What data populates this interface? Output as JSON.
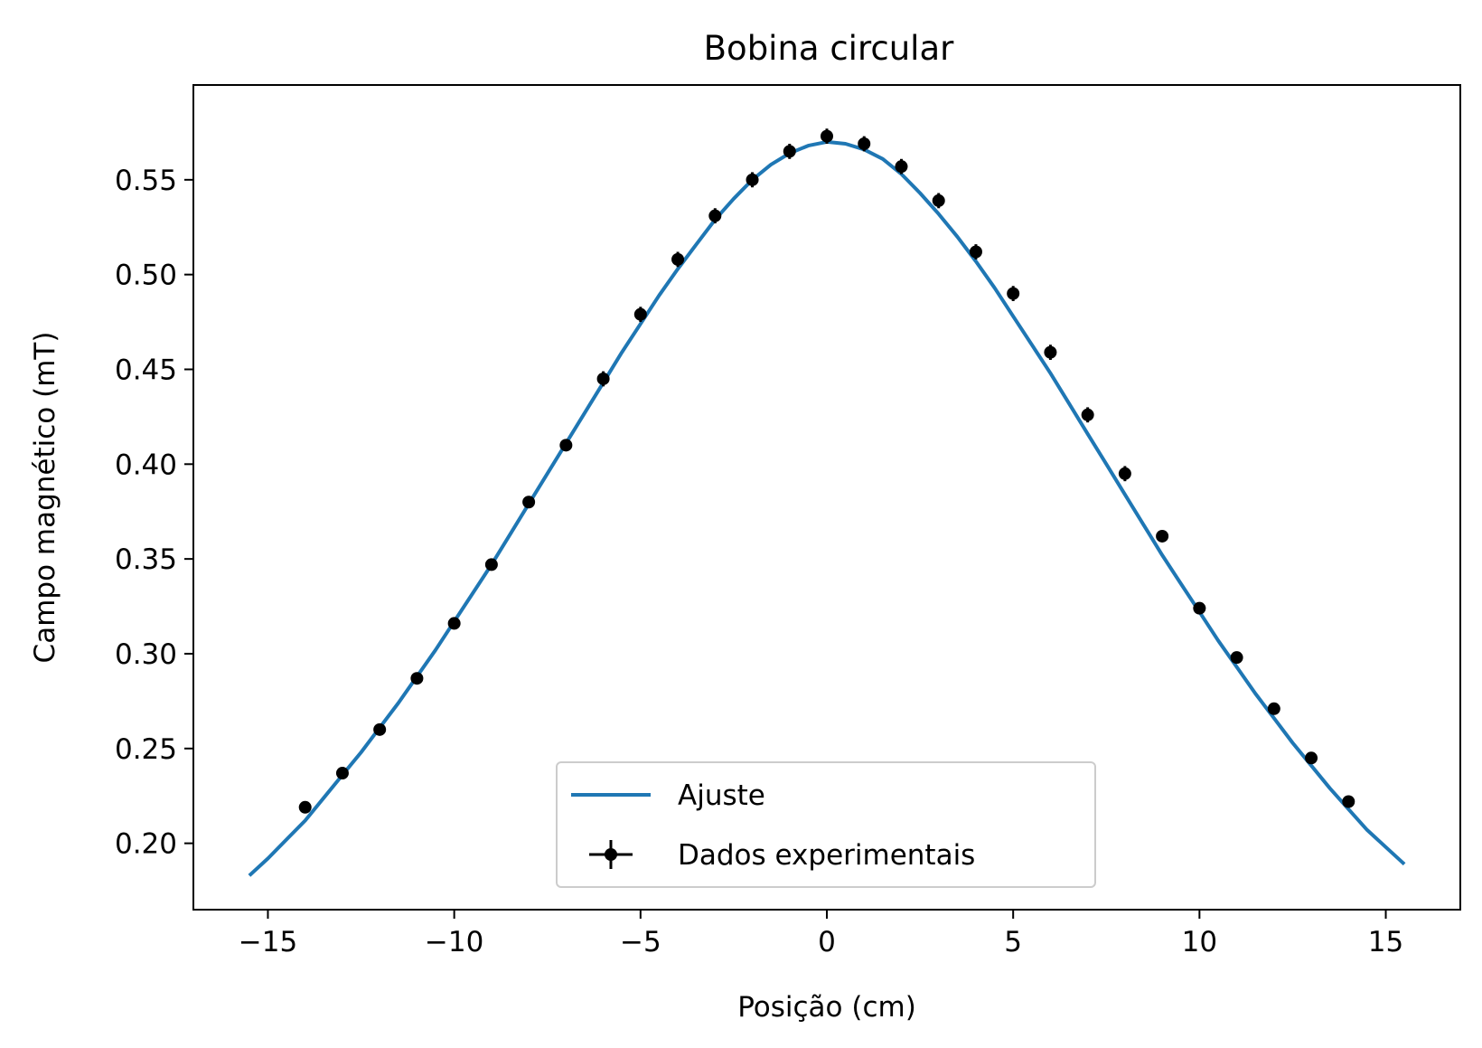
{
  "chart_data": {
    "type": "line",
    "title": "Bobina circular",
    "xlabel": "Posição (cm)",
    "ylabel": "Campo magnético (mT)",
    "xlim": [
      -17,
      17
    ],
    "ylim": [
      0.165,
      0.6
    ],
    "xticks": [
      -15,
      -10,
      -5,
      0,
      5,
      10,
      15
    ],
    "xtick_labels": [
      "−15",
      "−10",
      "−5",
      "0",
      "5",
      "10",
      "15"
    ],
    "yticks": [
      0.2,
      0.25,
      0.3,
      0.35,
      0.4,
      0.45,
      0.5,
      0.55
    ],
    "ytick_labels": [
      "0.20",
      "0.25",
      "0.30",
      "0.35",
      "0.40",
      "0.45",
      "0.50",
      "0.55"
    ],
    "grid": false,
    "legend_position": "lower center",
    "series": [
      {
        "name": "Ajuste",
        "kind": "line",
        "color": "#1f77b4",
        "x": [
          -15.5,
          -15.0,
          -14.5,
          -14.0,
          -13.5,
          -13.0,
          -12.5,
          -12.0,
          -11.5,
          -11.0,
          -10.5,
          -10.0,
          -9.5,
          -9.0,
          -8.5,
          -8.0,
          -7.5,
          -7.0,
          -6.5,
          -6.0,
          -5.5,
          -5.0,
          -4.5,
          -4.0,
          -3.5,
          -3.0,
          -2.5,
          -2.0,
          -1.5,
          -1.0,
          -0.5,
          0.0,
          0.5,
          1.0,
          1.5,
          2.0,
          2.5,
          3.0,
          3.5,
          4.0,
          4.5,
          5.0,
          5.5,
          6.0,
          6.5,
          7.0,
          7.5,
          8.0,
          8.5,
          9.0,
          9.5,
          10.0,
          10.5,
          11.0,
          11.5,
          12.0,
          12.5,
          13.0,
          13.5,
          14.0,
          14.5,
          15.0,
          15.5
        ],
        "y": [
          0.183,
          0.192,
          0.202,
          0.212,
          0.224,
          0.236,
          0.248,
          0.261,
          0.274,
          0.288,
          0.302,
          0.317,
          0.332,
          0.347,
          0.363,
          0.379,
          0.395,
          0.411,
          0.427,
          0.443,
          0.459,
          0.474,
          0.489,
          0.503,
          0.516,
          0.529,
          0.54,
          0.55,
          0.558,
          0.564,
          0.568,
          0.57,
          0.569,
          0.566,
          0.561,
          0.553,
          0.543,
          0.532,
          0.52,
          0.507,
          0.493,
          0.478,
          0.463,
          0.448,
          0.432,
          0.416,
          0.4,
          0.384,
          0.368,
          0.352,
          0.337,
          0.322,
          0.307,
          0.293,
          0.279,
          0.266,
          0.253,
          0.241,
          0.229,
          0.218,
          0.207,
          0.198,
          0.189
        ]
      },
      {
        "name": "Dados experimentais",
        "kind": "errorbar",
        "color": "#000000",
        "x": [
          -14,
          -13,
          -12,
          -11,
          -10,
          -9,
          -8,
          -7,
          -6,
          -5,
          -4,
          -3,
          -2,
          -1,
          0,
          1,
          2,
          3,
          4,
          5,
          6,
          7,
          8,
          9,
          10,
          11,
          12,
          13,
          14
        ],
        "y": [
          0.219,
          0.237,
          0.26,
          0.287,
          0.316,
          0.347,
          0.38,
          0.41,
          0.445,
          0.479,
          0.508,
          0.531,
          0.55,
          0.565,
          0.573,
          0.569,
          0.557,
          0.539,
          0.512,
          0.49,
          0.459,
          0.426,
          0.395,
          0.362,
          0.324,
          0.298,
          0.271,
          0.245,
          0.222
        ],
        "yerr": [
          0.003,
          0.003,
          0.003,
          0.003,
          0.003,
          0.003,
          0.003,
          0.003,
          0.004,
          0.004,
          0.004,
          0.004,
          0.004,
          0.004,
          0.004,
          0.004,
          0.004,
          0.004,
          0.004,
          0.004,
          0.004,
          0.004,
          0.004,
          0.003,
          0.003,
          0.003,
          0.003,
          0.003,
          0.003
        ]
      }
    ]
  }
}
